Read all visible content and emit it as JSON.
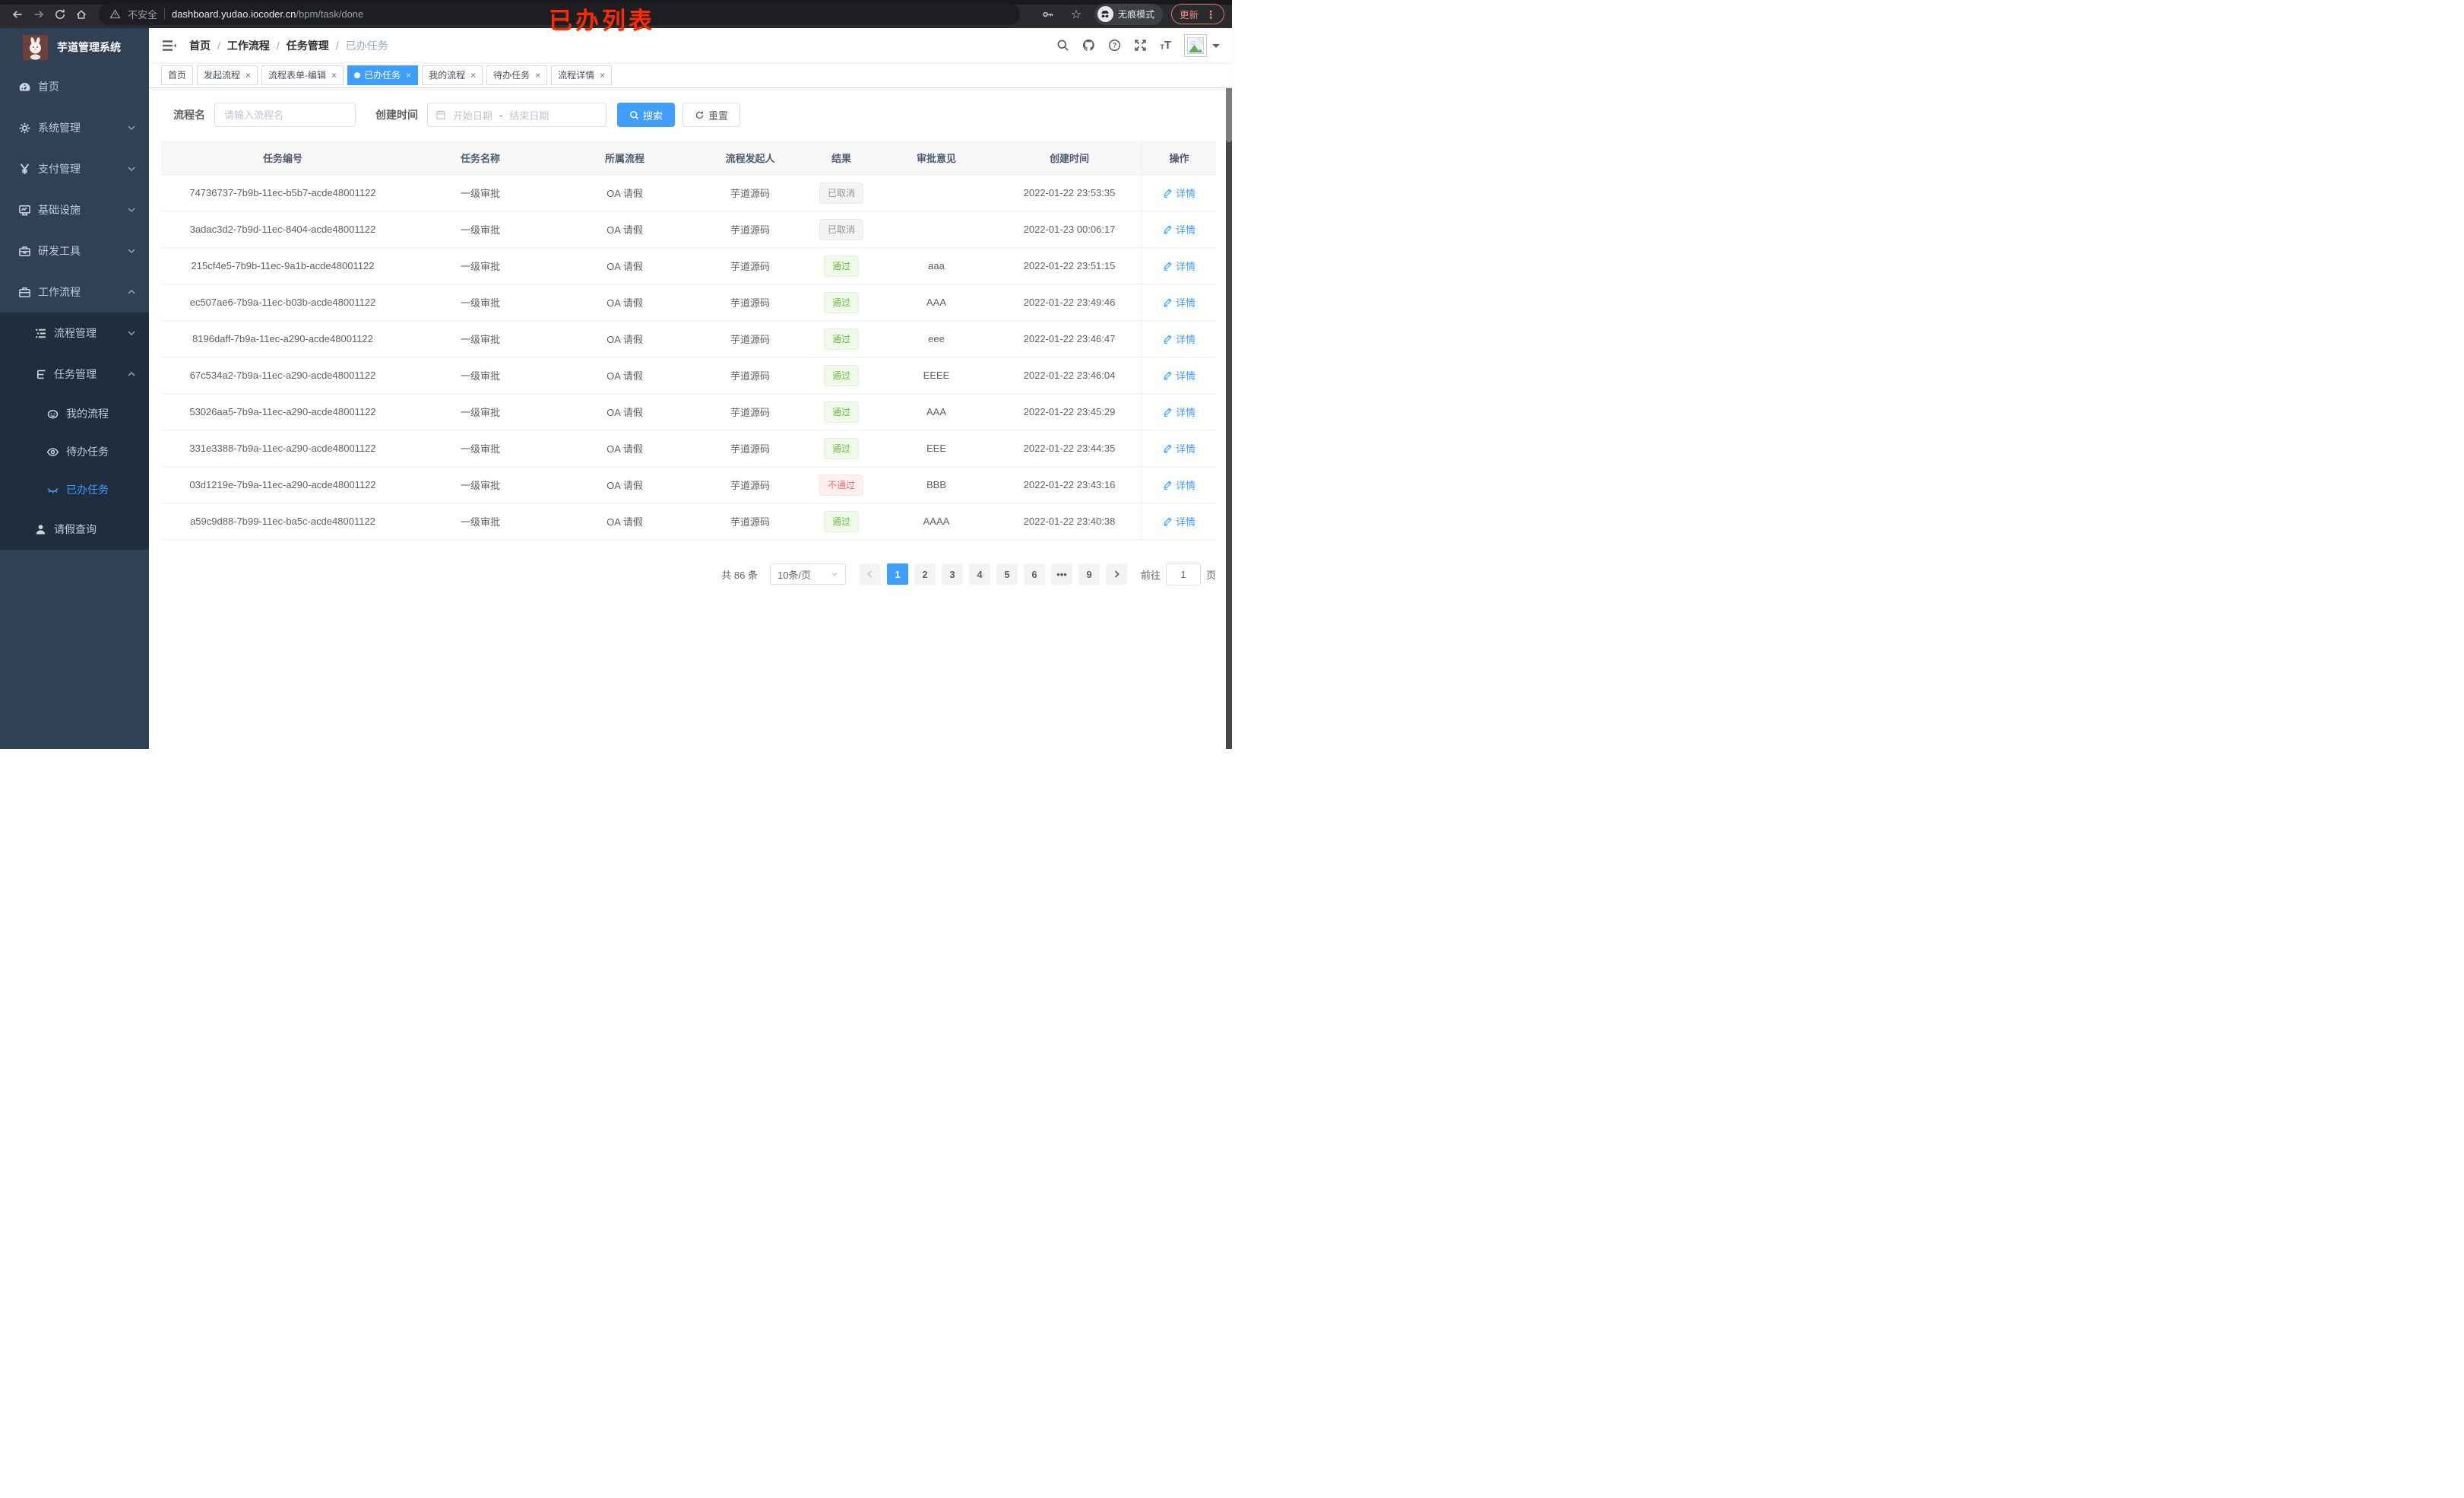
{
  "annotation": "已办列表",
  "browser": {
    "security_label": "不安全",
    "url_host": "dashboard.yudao.iocoder.cn",
    "url_path": "/bpm/task/done",
    "incognito_label": "无痕模式",
    "update_label": "更新",
    "menu_dots": "⋮"
  },
  "sidebar": {
    "title": "芋道管理系统",
    "items": [
      {
        "key": "home",
        "label": "首页",
        "icon": "dashboard-icon",
        "level": 1
      },
      {
        "key": "system",
        "label": "系统管理",
        "icon": "gear-icon",
        "level": 1,
        "chevron": "down"
      },
      {
        "key": "pay",
        "label": "支付管理",
        "icon": "yen-icon",
        "level": 1,
        "chevron": "down"
      },
      {
        "key": "infra",
        "label": "基础设施",
        "icon": "monitor-icon",
        "level": 1,
        "chevron": "down"
      },
      {
        "key": "devtools",
        "label": "研发工具",
        "icon": "toolbox-icon",
        "level": 1,
        "chevron": "down"
      },
      {
        "key": "workflow",
        "label": "工作流程",
        "icon": "briefcase-icon",
        "level": 1,
        "chevron": "up"
      },
      {
        "key": "process-mgmt",
        "label": "流程管理",
        "icon": "list-icon",
        "level": 2,
        "sub": true,
        "chevron": "down"
      },
      {
        "key": "task-mgmt",
        "label": "任务管理",
        "icon": "tree-icon",
        "level": 2,
        "sub": true,
        "chevron": "up"
      },
      {
        "key": "my-process",
        "label": "我的流程",
        "icon": "message-icon",
        "level": 3,
        "sub": true
      },
      {
        "key": "todo-task",
        "label": "待办任务",
        "icon": "eye-open-icon",
        "level": 3,
        "sub": true
      },
      {
        "key": "done-task",
        "label": "已办任务",
        "icon": "eye-closed-icon",
        "level": 3,
        "sub": true,
        "active": true
      },
      {
        "key": "leave-query",
        "label": "请假查询",
        "icon": "user-icon",
        "level": 2,
        "sub": true
      }
    ]
  },
  "breadcrumb": [
    "首页",
    "工作流程",
    "任务管理",
    "已办任务"
  ],
  "tabs": [
    {
      "key": "home",
      "label": "首页",
      "closable": false
    },
    {
      "key": "start-process",
      "label": "发起流程",
      "closable": true
    },
    {
      "key": "form-edit",
      "label": "流程表单-编辑",
      "closable": true
    },
    {
      "key": "done-task",
      "label": "已办任务",
      "closable": true,
      "active": true
    },
    {
      "key": "my-process",
      "label": "我的流程",
      "closable": true
    },
    {
      "key": "todo-task",
      "label": "待办任务",
      "closable": true
    },
    {
      "key": "process-detail",
      "label": "流程详情",
      "closable": true
    }
  ],
  "filters": {
    "name_label": "流程名",
    "name_placeholder": "请输入流程名",
    "time_label": "创建时间",
    "start_placeholder": "开始日期",
    "range_separator": "-",
    "end_placeholder": "结束日期",
    "search_label": "搜索",
    "reset_label": "重置"
  },
  "table": {
    "detail_label": "详情",
    "columns": [
      {
        "key": "id",
        "label": "任务编号"
      },
      {
        "key": "name",
        "label": "任务名称"
      },
      {
        "key": "process",
        "label": "所属流程"
      },
      {
        "key": "starter",
        "label": "流程发起人"
      },
      {
        "key": "result",
        "label": "结果"
      },
      {
        "key": "opinion",
        "label": "审批意见"
      },
      {
        "key": "created",
        "label": "创建时间"
      },
      {
        "key": "action",
        "label": "操作"
      }
    ],
    "rows": [
      {
        "id": "74736737-7b9b-11ec-b5b7-acde48001122",
        "name": "一级审批",
        "process": "OA 请假",
        "starter": "芋道源码",
        "result": "已取消",
        "result_type": "info",
        "opinion": "",
        "created": "2022-01-22 23:53:35"
      },
      {
        "id": "3adac3d2-7b9d-11ec-8404-acde48001122",
        "name": "一级审批",
        "process": "OA 请假",
        "starter": "芋道源码",
        "result": "已取消",
        "result_type": "info",
        "opinion": "",
        "created": "2022-01-23 00:06:17"
      },
      {
        "id": "215cf4e5-7b9b-11ec-9a1b-acde48001122",
        "name": "一级审批",
        "process": "OA 请假",
        "starter": "芋道源码",
        "result": "通过",
        "result_type": "success",
        "opinion": "aaa",
        "created": "2022-01-22 23:51:15"
      },
      {
        "id": "ec507ae6-7b9a-11ec-b03b-acde48001122",
        "name": "一级审批",
        "process": "OA 请假",
        "starter": "芋道源码",
        "result": "通过",
        "result_type": "success",
        "opinion": "AAA",
        "created": "2022-01-22 23:49:46"
      },
      {
        "id": "8196daff-7b9a-11ec-a290-acde48001122",
        "name": "一级审批",
        "process": "OA 请假",
        "starter": "芋道源码",
        "result": "通过",
        "result_type": "success",
        "opinion": "eee",
        "created": "2022-01-22 23:46:47"
      },
      {
        "id": "67c534a2-7b9a-11ec-a290-acde48001122",
        "name": "一级审批",
        "process": "OA 请假",
        "starter": "芋道源码",
        "result": "通过",
        "result_type": "success",
        "opinion": "EEEE",
        "created": "2022-01-22 23:46:04"
      },
      {
        "id": "53026aa5-7b9a-11ec-a290-acde48001122",
        "name": "一级审批",
        "process": "OA 请假",
        "starter": "芋道源码",
        "result": "通过",
        "result_type": "success",
        "opinion": "AAA",
        "created": "2022-01-22 23:45:29"
      },
      {
        "id": "331e3388-7b9a-11ec-a290-acde48001122",
        "name": "一级审批",
        "process": "OA 请假",
        "starter": "芋道源码",
        "result": "通过",
        "result_type": "success",
        "opinion": "EEE",
        "created": "2022-01-22 23:44:35"
      },
      {
        "id": "03d1219e-7b9a-11ec-a290-acde48001122",
        "name": "一级审批",
        "process": "OA 请假",
        "starter": "芋道源码",
        "result": "不通过",
        "result_type": "danger",
        "opinion": "BBB",
        "created": "2022-01-22 23:43:16"
      },
      {
        "id": "a59c9d88-7b99-11ec-ba5c-acde48001122",
        "name": "一级审批",
        "process": "OA 请假",
        "starter": "芋道源码",
        "result": "通过",
        "result_type": "success",
        "opinion": "AAAA",
        "created": "2022-01-22 23:40:38"
      }
    ]
  },
  "pagination": {
    "total_label": "共 86 条",
    "page_size": "10条/页",
    "pages": [
      {
        "label": "1",
        "active": true
      },
      {
        "label": "2"
      },
      {
        "label": "3"
      },
      {
        "label": "4"
      },
      {
        "label": "5"
      },
      {
        "label": "6"
      },
      {
        "label": "•••",
        "ellipsis": true
      },
      {
        "label": "9"
      }
    ],
    "prev_disabled": true,
    "goto_label": "前往",
    "goto_value": "1",
    "page_unit": "页"
  },
  "colors": {
    "accent": "#409eff",
    "success": "#67c23a",
    "danger": "#f56c6c",
    "info": "#909399",
    "sidebar_bg": "#304156",
    "submenu_bg": "#1f2d3d",
    "annotation": "#ff2a00"
  }
}
